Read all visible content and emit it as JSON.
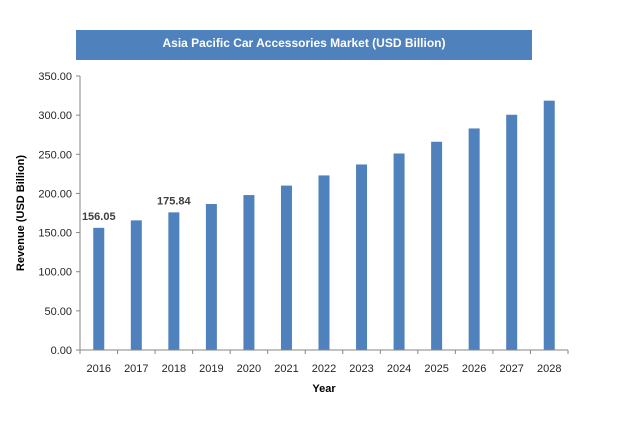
{
  "chart_data": {
    "type": "bar",
    "title": "Asia Pacific Car Accessories Market (USD Billion)",
    "xlabel": "Year",
    "ylabel": "Revenue (USD Billion)",
    "categories": [
      "2016",
      "2017",
      "2018",
      "2019",
      "2020",
      "2021",
      "2022",
      "2023",
      "2024",
      "2025",
      "2026",
      "2027",
      "2028"
    ],
    "series": [
      {
        "values": [
          156.05,
          165.6,
          175.84,
          186.5,
          197.9,
          210.0,
          223.0,
          237.0,
          251.0,
          266.0,
          283.0,
          300.5,
          318.5
        ]
      }
    ],
    "data_labels": [
      {
        "category": "2016",
        "text": "156.05"
      },
      {
        "category": "2018",
        "text": "175.84"
      }
    ],
    "ylim": [
      0,
      350
    ],
    "yticks": [
      "0.00",
      "50.00",
      "100.00",
      "150.00",
      "200.00",
      "250.00",
      "300.00",
      "350.00"
    ],
    "grid": false,
    "legend": "none",
    "colors": {
      "bar": "#4f81bd",
      "title_banner": "#4f81bd"
    }
  }
}
